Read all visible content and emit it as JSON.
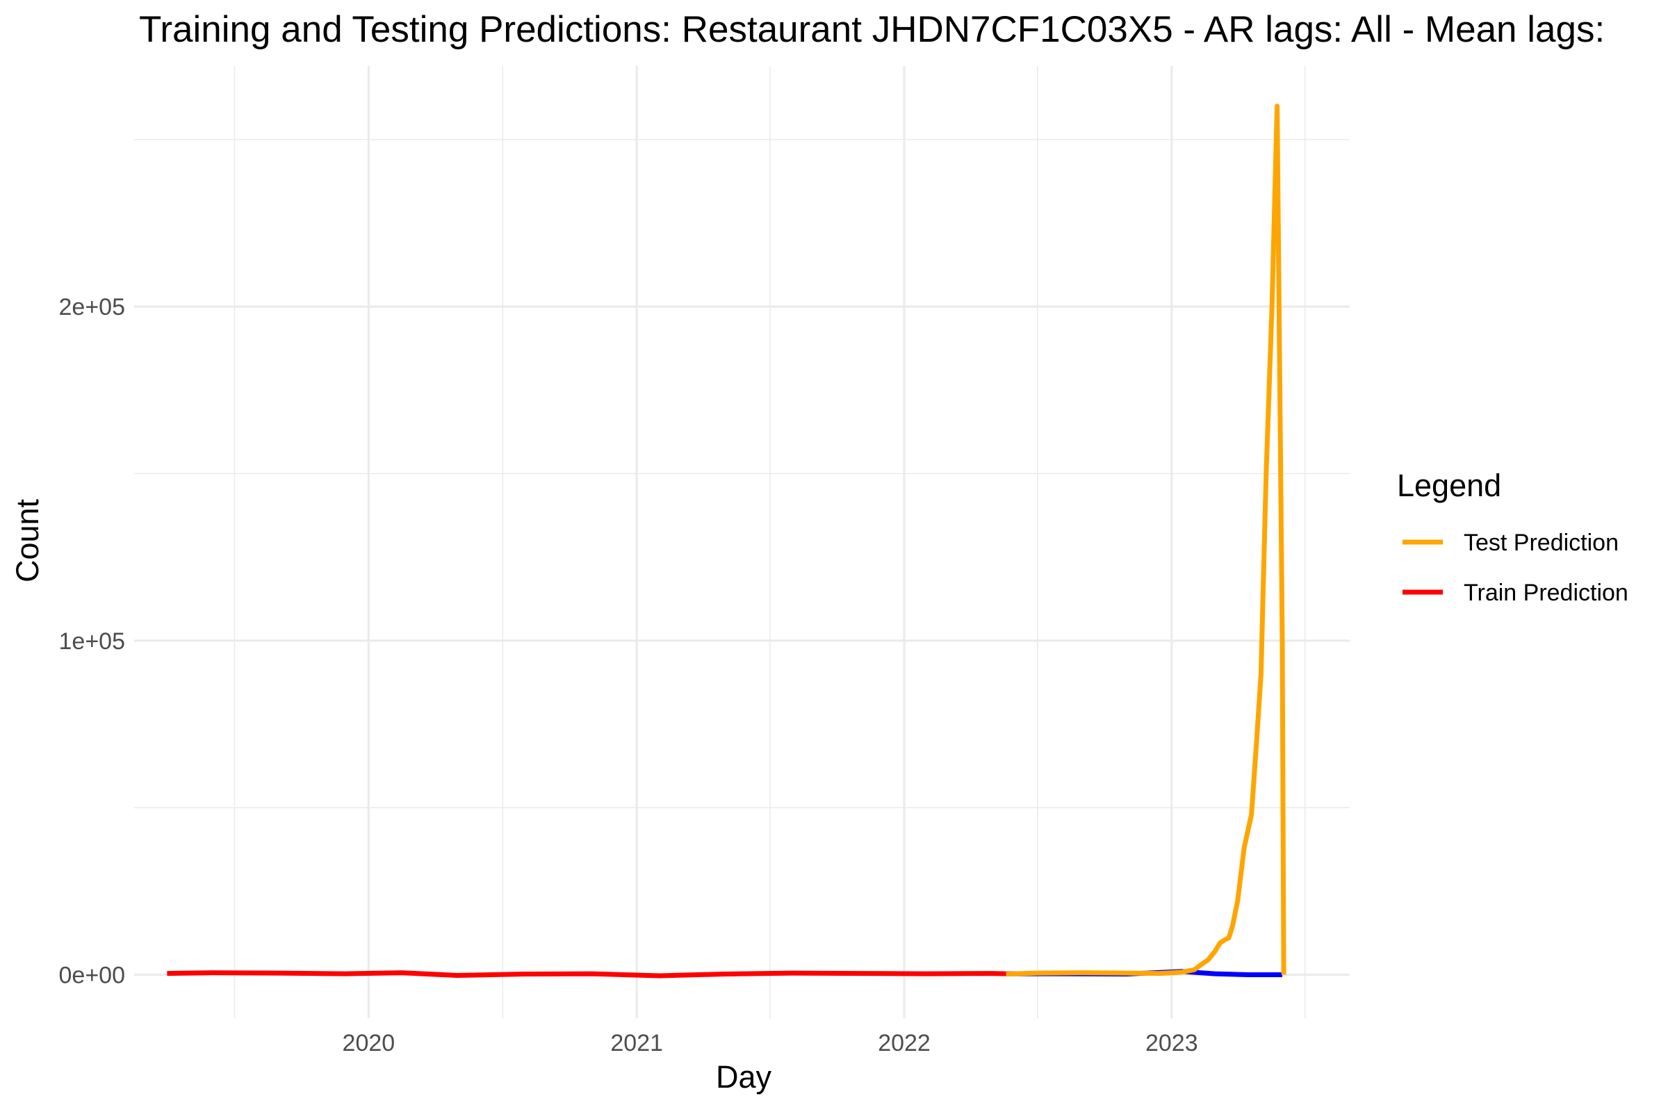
{
  "chart_data": {
    "type": "line",
    "title": "Training and Testing Predictions: Restaurant JHDN7CF1C03X5 - AR lags: All - Mean lags:",
    "xlabel": "Day",
    "ylabel": "Count",
    "x_ticks": [
      "2020",
      "2021",
      "2022",
      "2023"
    ],
    "y_ticks": [
      "0e+00",
      "1e+05",
      "2e+05"
    ],
    "xlim": [
      "2019-02-15",
      "2023-09-01"
    ],
    "ylim": [
      -13000,
      272000
    ],
    "grid": true,
    "legend": {
      "title": "Legend",
      "position": "right",
      "entries": [
        {
          "label": "Test Prediction",
          "color": "#FFA500"
        },
        {
          "label": "Train Prediction",
          "color": "#FF0000"
        }
      ]
    },
    "series": [
      {
        "name": "Train Prediction",
        "color": "#FF0000",
        "x": [
          "2019-04-01",
          "2019-06-01",
          "2019-09-01",
          "2019-12-01",
          "2020-02-15",
          "2020-05-01",
          "2020-08-01",
          "2020-11-01",
          "2021-02-01",
          "2021-05-01",
          "2021-08-01",
          "2021-11-01",
          "2022-02-01",
          "2022-05-01",
          "2022-05-20"
        ],
        "values": [
          400,
          600,
          500,
          300,
          600,
          -200,
          200,
          300,
          -300,
          200,
          500,
          400,
          300,
          400,
          300
        ]
      },
      {
        "color": "#0000FF",
        "x": [
          "2022-05-20",
          "2022-08-01",
          "2022-11-01",
          "2023-01-15",
          "2023-03-01",
          "2023-04-15",
          "2023-06-01"
        ],
        "values": [
          300,
          300,
          200,
          1000,
          300,
          0,
          0
        ]
      },
      {
        "name": "Test Prediction",
        "color": "#FFA500",
        "x": [
          "2022-05-20",
          "2022-07-01",
          "2022-09-01",
          "2022-11-01",
          "2022-12-15",
          "2023-01-15",
          "2023-02-01",
          "2023-02-10",
          "2023-02-20",
          "2023-03-01",
          "2023-03-08",
          "2023-03-15",
          "2023-03-20",
          "2023-03-25",
          "2023-04-01",
          "2023-04-10",
          "2023-04-20",
          "2023-04-27",
          "2023-05-03",
          "2023-05-10",
          "2023-05-18",
          "2023-05-25",
          "2023-06-01",
          "2023-06-03"
        ],
        "values": [
          200,
          500,
          600,
          500,
          400,
          800,
          1500,
          3000,
          4500,
          7000,
          9500,
          10500,
          11000,
          14500,
          22000,
          38000,
          48000,
          70000,
          90000,
          150000,
          200000,
          260000,
          100000,
          0
        ]
      }
    ]
  }
}
